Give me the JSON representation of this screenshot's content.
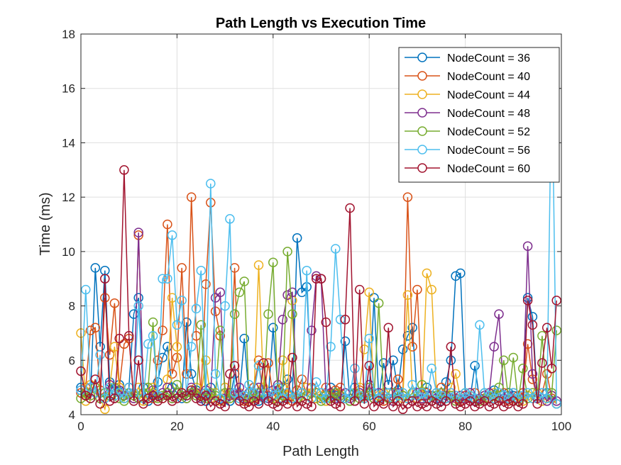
{
  "chart_data": {
    "type": "line",
    "title": "Path Length vs Execution Time",
    "xlabel": "Path Length",
    "ylabel": "Time (ms)",
    "xlim": [
      0,
      100
    ],
    "ylim": [
      4,
      18
    ],
    "xticks": [
      "0",
      "20",
      "40",
      "60",
      "80",
      "100"
    ],
    "yticks": [
      "4",
      "6",
      "8",
      "10",
      "12",
      "14",
      "16",
      "18"
    ],
    "grid": true,
    "legend_position": "top-right",
    "marker": "open-circle",
    "x": [
      0,
      1,
      2,
      3,
      4,
      5,
      6,
      7,
      8,
      9,
      10,
      11,
      12,
      13,
      14,
      15,
      16,
      17,
      18,
      19,
      20,
      21,
      22,
      23,
      24,
      25,
      26,
      27,
      28,
      29,
      30,
      31,
      32,
      33,
      34,
      35,
      36,
      37,
      38,
      39,
      40,
      41,
      42,
      43,
      44,
      45,
      46,
      47,
      48,
      49,
      50,
      51,
      52,
      53,
      54,
      55,
      56,
      57,
      58,
      59,
      60,
      61,
      62,
      63,
      64,
      65,
      66,
      67,
      68,
      69,
      70,
      71,
      72,
      73,
      74,
      75,
      76,
      77,
      78,
      79,
      80,
      81,
      82,
      83,
      84,
      85,
      86,
      87,
      88,
      89,
      90,
      91,
      92,
      93,
      94,
      95,
      96,
      97,
      98,
      99
    ],
    "series": [
      {
        "name": "NodeCount = 36",
        "color": "#0072BD",
        "values": [
          5.0,
          4.8,
          4.6,
          9.4,
          6.5,
          9.3,
          5.2,
          4.9,
          5.1,
          4.6,
          5.0,
          7.7,
          8.3,
          5.0,
          4.5,
          4.8,
          5.2,
          6.1,
          6.5,
          5.0,
          4.8,
          4.6,
          7.4,
          5.5,
          4.9,
          4.6,
          4.5,
          5.0,
          4.8,
          4.4,
          4.6,
          4.5,
          5.5,
          4.7,
          6.8,
          4.6,
          5.0,
          4.5,
          4.8,
          4.6,
          7.2,
          4.9,
          5.0,
          5.3,
          4.6,
          10.5,
          8.5,
          8.7,
          5.0,
          4.8,
          4.6,
          4.5,
          5.0,
          4.7,
          4.6,
          6.7,
          4.5,
          5.0,
          4.8,
          4.6,
          4.7,
          8.3,
          4.6,
          5.9,
          5.1,
          6.0,
          4.9,
          6.4,
          6.9,
          7.2,
          4.6,
          4.8,
          5.0,
          4.7,
          4.6,
          4.5,
          5.2,
          6.0,
          9.1,
          9.2,
          4.8,
          4.6,
          5.8,
          4.5,
          4.7,
          4.6,
          4.9,
          4.5,
          4.6,
          4.8,
          4.7,
          4.6,
          4.8,
          8.3,
          7.6,
          4.6,
          4.5,
          4.8,
          4.6,
          4.4
        ]
      },
      {
        "name": "NodeCount = 40",
        "color": "#D95319",
        "values": [
          4.8,
          5.0,
          7.1,
          7.2,
          4.9,
          8.3,
          6.2,
          8.1,
          5.0,
          6.6,
          6.8,
          4.6,
          10.6,
          4.8,
          5.0,
          4.6,
          6.0,
          7.1,
          11.0,
          5.5,
          6.1,
          9.4,
          5.5,
          12.0,
          6.9,
          4.8,
          8.8,
          11.8,
          7.8,
          6.9,
          5.0,
          4.7,
          9.4,
          4.6,
          4.5,
          4.8,
          5.0,
          6.0,
          4.6,
          5.9,
          4.7,
          4.8,
          5.0,
          4.6,
          4.5,
          4.9,
          5.3,
          4.7,
          5.0,
          4.6,
          4.8,
          5.0,
          4.6,
          4.9,
          5.0,
          4.6,
          4.8,
          4.5,
          4.9,
          4.6,
          4.8,
          4.6,
          4.7,
          4.5,
          4.8,
          4.6,
          5.3,
          4.7,
          12.0,
          6.5,
          8.6,
          4.6,
          4.8,
          4.5,
          4.7,
          5.0,
          4.6,
          4.8,
          4.6,
          4.5,
          4.7,
          4.6,
          4.8,
          4.5,
          4.6,
          4.8,
          4.7,
          4.6,
          4.8,
          4.5,
          4.6,
          4.7,
          4.8,
          6.6,
          5.3,
          4.6,
          4.8,
          5.5,
          4.6,
          4.4
        ]
      },
      {
        "name": "NodeCount = 44",
        "color": "#EDB120",
        "values": [
          7.0,
          4.5,
          5.1,
          4.8,
          4.6,
          4.2,
          5.0,
          6.5,
          5.0,
          4.6,
          5.0,
          4.7,
          5.0,
          4.5,
          4.8,
          5.0,
          4.7,
          4.6,
          5.3,
          8.3,
          6.5,
          4.8,
          4.6,
          4.9,
          5.0,
          4.7,
          6.0,
          4.6,
          4.8,
          4.5,
          5.0,
          4.6,
          4.7,
          4.8,
          4.6,
          4.5,
          4.6,
          9.5,
          5.0,
          4.7,
          4.6,
          4.5,
          6.0,
          4.7,
          8.2,
          4.6,
          4.5,
          5.0,
          4.8,
          4.6,
          4.7,
          4.5,
          4.6,
          4.8,
          4.7,
          4.6,
          4.5,
          4.8,
          5.0,
          6.4,
          8.5,
          4.6,
          4.7,
          4.8,
          4.6,
          4.5,
          4.7,
          4.6,
          8.4,
          4.8,
          4.6,
          4.7,
          9.2,
          8.6,
          4.8,
          4.7,
          4.6,
          5.0,
          5.5,
          4.6,
          4.8,
          4.7,
          4.6,
          4.5,
          4.7,
          4.6,
          4.8,
          4.5,
          4.6,
          4.7,
          4.8,
          4.6,
          4.5,
          4.7,
          4.6,
          4.8,
          4.5,
          4.6,
          4.7,
          4.4
        ]
      },
      {
        "name": "NodeCount = 48",
        "color": "#7E2F8E",
        "values": [
          4.9,
          4.7,
          5.0,
          4.8,
          4.6,
          4.8,
          5.1,
          4.6,
          4.9,
          4.7,
          5.0,
          4.6,
          10.7,
          4.8,
          4.6,
          4.9,
          4.7,
          4.8,
          5.0,
          4.6,
          4.8,
          4.7,
          4.6,
          5.0,
          4.8,
          4.6,
          4.9,
          4.7,
          8.3,
          8.5,
          4.6,
          4.8,
          4.7,
          5.0,
          4.6,
          4.8,
          4.5,
          5.0,
          4.7,
          4.6,
          4.9,
          5.1,
          7.5,
          8.4,
          8.5,
          4.6,
          4.8,
          4.7,
          7.1,
          9.1,
          9.0,
          4.7,
          4.8,
          4.6,
          4.7,
          4.8,
          4.6,
          4.5,
          4.8,
          4.7,
          5.1,
          4.6,
          4.8,
          4.7,
          4.6,
          4.5,
          4.8,
          4.7,
          4.6,
          4.5,
          4.8,
          4.6,
          4.7,
          4.5,
          4.6,
          4.8,
          4.7,
          4.6,
          4.5,
          4.7,
          4.6,
          4.8,
          4.5,
          4.6,
          4.7,
          4.8,
          6.5,
          7.7,
          4.6,
          4.7,
          4.8,
          4.6,
          4.7,
          10.2,
          5.5,
          4.6,
          4.8,
          4.5,
          4.7,
          4.5
        ]
      },
      {
        "name": "NodeCount = 52",
        "color": "#77AC30",
        "values": [
          4.6,
          4.8,
          4.7,
          5.0,
          4.6,
          4.8,
          4.7,
          5.0,
          4.6,
          4.5,
          4.8,
          4.7,
          4.6,
          4.8,
          5.0,
          7.4,
          4.6,
          4.7,
          4.8,
          4.6,
          5.1,
          4.7,
          4.6,
          4.8,
          4.7,
          7.3,
          4.6,
          4.8,
          4.7,
          7.1,
          4.8,
          4.6,
          7.7,
          8.5,
          8.9,
          4.6,
          4.7,
          4.8,
          4.6,
          7.7,
          9.6,
          4.5,
          4.7,
          10.0,
          7.7,
          4.6,
          4.8,
          4.7,
          4.6,
          4.8,
          4.5,
          4.7,
          4.6,
          4.8,
          4.7,
          4.6,
          4.5,
          4.8,
          4.6,
          4.7,
          5.0,
          4.6,
          8.1,
          4.7,
          4.6,
          4.8,
          4.5,
          4.7,
          4.6,
          4.8,
          4.7,
          5.1,
          4.6,
          4.5,
          4.7,
          4.8,
          4.6,
          4.7,
          4.5,
          4.6,
          4.8,
          4.7,
          4.6,
          4.5,
          4.8,
          4.6,
          4.7,
          5.0,
          6.0,
          4.6,
          6.1,
          4.5,
          5.7,
          4.6,
          4.8,
          4.7,
          6.9,
          4.6,
          4.8,
          7.1
        ]
      },
      {
        "name": "NodeCount = 56",
        "color": "#4DBEEE",
        "values": [
          4.9,
          8.6,
          5.0,
          4.8,
          6.2,
          4.6,
          5.0,
          4.7,
          4.8,
          4.6,
          5.0,
          4.8,
          8.0,
          4.6,
          6.6,
          6.9,
          4.7,
          9.0,
          9.0,
          10.6,
          7.3,
          8.2,
          4.7,
          6.5,
          7.9,
          9.3,
          4.8,
          12.5,
          5.5,
          4.6,
          8.0,
          11.2,
          4.8,
          4.6,
          4.7,
          5.1,
          4.8,
          5.8,
          4.6,
          4.8,
          4.7,
          5.0,
          4.6,
          4.8,
          4.6,
          4.7,
          4.8,
          9.3,
          4.6,
          5.2,
          4.8,
          4.6,
          6.5,
          10.1,
          7.5,
          4.6,
          4.8,
          5.7,
          4.7,
          4.6,
          6.8,
          4.8,
          4.6,
          4.7,
          4.8,
          4.6,
          4.7,
          4.8,
          4.6,
          5.1,
          4.7,
          4.8,
          4.6,
          5.7,
          4.8,
          4.7,
          4.6,
          4.8,
          4.7,
          4.6,
          4.8,
          4.7,
          4.6,
          7.3,
          4.8,
          4.7,
          4.6,
          4.8,
          4.7,
          4.6,
          4.8,
          4.6,
          4.7,
          4.8,
          4.6,
          4.7,
          4.8,
          4.6,
          17.0,
          4.4
        ]
      },
      {
        "name": "NodeCount = 60",
        "color": "#A2142F",
        "values": [
          5.6,
          4.7,
          4.6,
          5.3,
          4.4,
          9.0,
          4.5,
          4.6,
          6.8,
          13.0,
          6.9,
          4.5,
          6.0,
          4.4,
          4.6,
          4.7,
          4.5,
          4.6,
          4.7,
          4.5,
          4.6,
          4.8,
          4.7,
          4.9,
          4.6,
          4.5,
          4.7,
          4.3,
          4.5,
          4.4,
          4.3,
          5.5,
          5.8,
          4.5,
          4.4,
          4.3,
          4.5,
          4.4,
          5.9,
          4.5,
          4.4,
          4.3,
          4.5,
          4.4,
          6.1,
          4.3,
          4.5,
          4.4,
          4.3,
          9.0,
          9.0,
          7.4,
          4.5,
          4.4,
          4.3,
          7.5,
          11.6,
          4.5,
          8.6,
          4.4,
          5.8,
          4.3,
          4.5,
          4.4,
          7.2,
          4.3,
          4.5,
          4.2,
          4.4,
          4.5,
          4.3,
          4.4,
          4.3,
          4.5,
          4.4,
          4.3,
          4.5,
          6.5,
          4.4,
          4.3,
          4.4,
          4.5,
          4.3,
          4.4,
          4.5,
          4.3,
          4.4,
          4.5,
          4.3,
          4.4,
          4.5,
          4.3,
          4.4,
          8.2,
          7.3,
          4.4,
          5.9,
          7.2,
          5.7,
          8.2
        ]
      }
    ]
  }
}
